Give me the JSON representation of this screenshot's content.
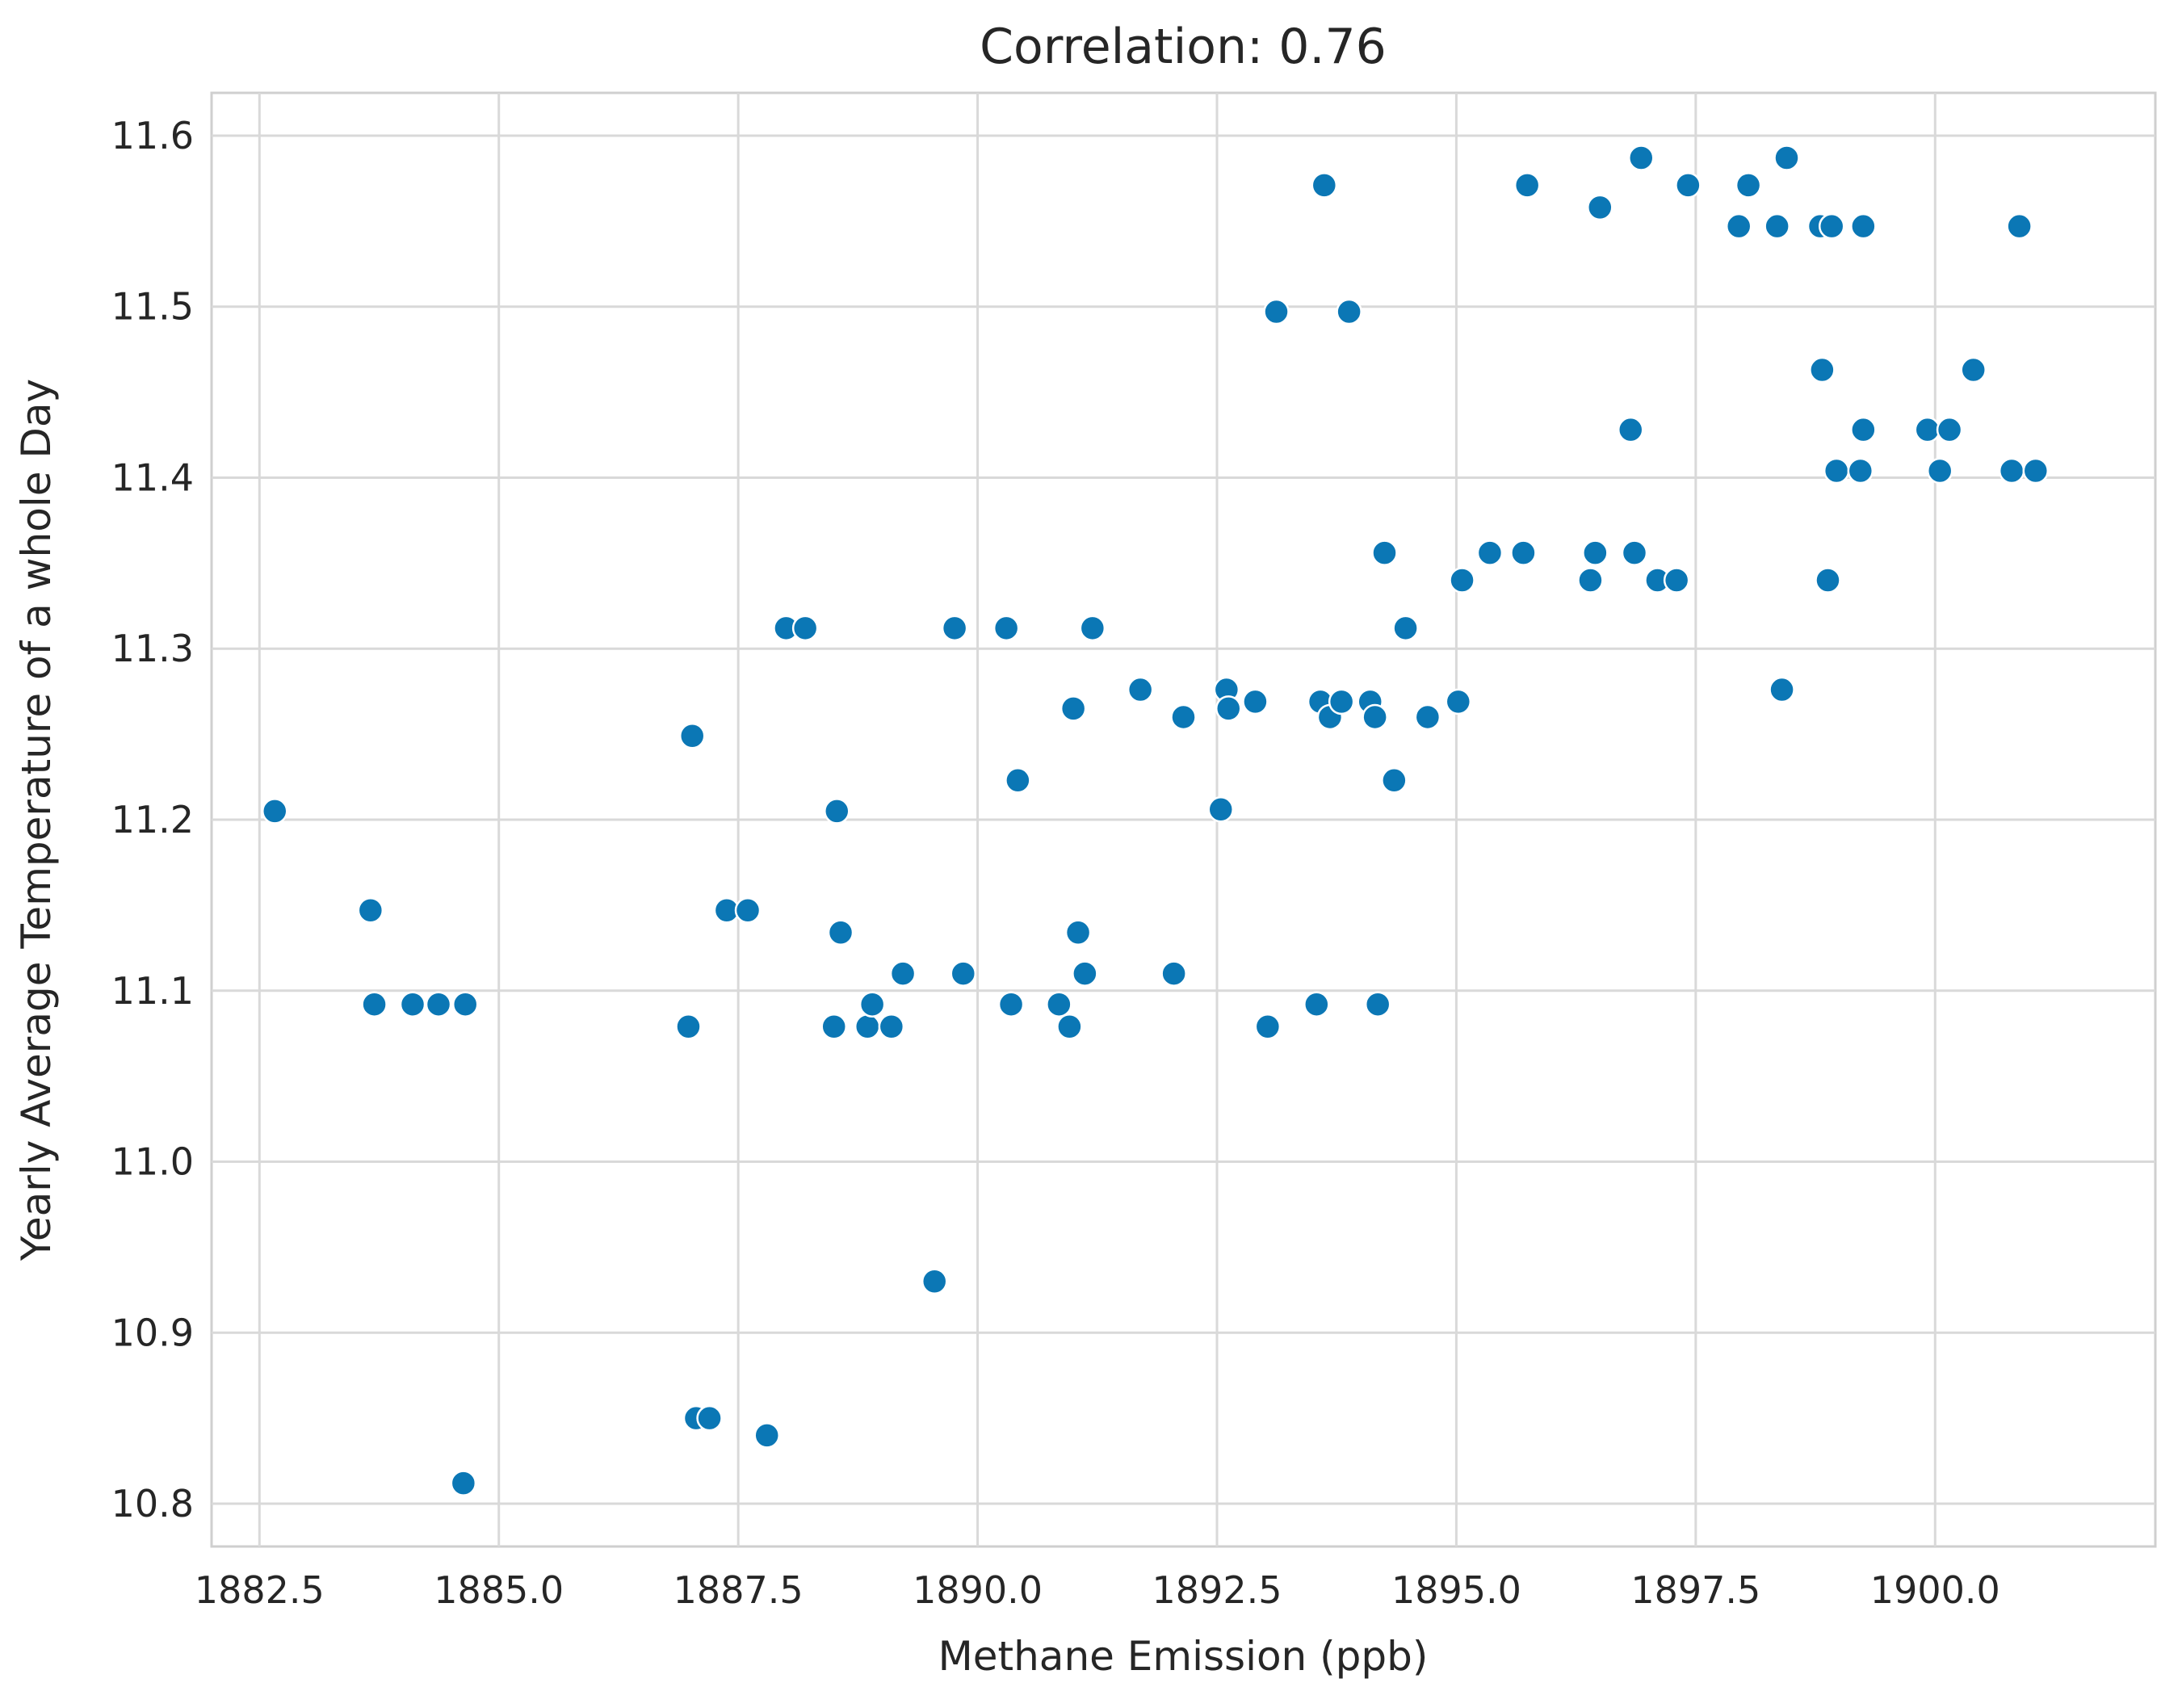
{
  "chart_data": {
    "type": "scatter",
    "title": "Correlation: 0.76",
    "xlabel": "Methane Emission (ppb)",
    "ylabel": "Yearly Average Temperature of a whole Day",
    "xlim": [
      1882.0,
      1902.3
    ],
    "ylim": [
      10.775,
      11.625
    ],
    "xticks": [
      1882.5,
      1885.0,
      1887.5,
      1890.0,
      1892.5,
      1895.0,
      1897.5,
      1900.0
    ],
    "xtick_labels": [
      "1882.5",
      "1885.0",
      "1887.5",
      "1890.0",
      "1892.5",
      "1895.0",
      "1897.5",
      "1900.0"
    ],
    "yticks": [
      10.8,
      10.9,
      11.0,
      11.1,
      11.2,
      11.3,
      11.4,
      11.5,
      11.6
    ],
    "ytick_labels": [
      "10.8",
      "10.9",
      "11.0",
      "11.1",
      "11.2",
      "11.3",
      "11.4",
      "11.5",
      "11.6"
    ],
    "grid": true,
    "point_color": "#0b77b5",
    "points": [
      [
        1882.66,
        11.205
      ],
      [
        1883.66,
        11.147
      ],
      [
        1883.7,
        11.092
      ],
      [
        1884.1,
        11.092
      ],
      [
        1884.37,
        11.092
      ],
      [
        1884.65,
        11.092
      ],
      [
        1884.63,
        10.812
      ],
      [
        1886.98,
        11.079
      ],
      [
        1887.02,
        11.249
      ],
      [
        1887.06,
        10.85
      ],
      [
        1887.2,
        10.85
      ],
      [
        1887.38,
        11.147
      ],
      [
        1887.6,
        11.147
      ],
      [
        1887.8,
        10.84
      ],
      [
        1888.0,
        11.312
      ],
      [
        1888.2,
        11.312
      ],
      [
        1888.5,
        11.079
      ],
      [
        1888.53,
        11.205
      ],
      [
        1888.57,
        11.134
      ],
      [
        1888.85,
        11.079
      ],
      [
        1888.9,
        11.092
      ],
      [
        1889.1,
        11.079
      ],
      [
        1889.22,
        11.11
      ],
      [
        1889.55,
        10.93
      ],
      [
        1889.76,
        11.312
      ],
      [
        1889.85,
        11.11
      ],
      [
        1890.3,
        11.312
      ],
      [
        1890.35,
        11.092
      ],
      [
        1890.42,
        11.223
      ],
      [
        1890.85,
        11.092
      ],
      [
        1890.96,
        11.079
      ],
      [
        1891.0,
        11.265
      ],
      [
        1891.05,
        11.134
      ],
      [
        1891.12,
        11.11
      ],
      [
        1891.2,
        11.312
      ],
      [
        1891.7,
        11.276
      ],
      [
        1892.05,
        11.11
      ],
      [
        1892.15,
        11.26
      ],
      [
        1892.54,
        11.206
      ],
      [
        1892.6,
        11.276
      ],
      [
        1892.62,
        11.265
      ],
      [
        1892.9,
        11.269
      ],
      [
        1893.03,
        11.079
      ],
      [
        1893.12,
        11.497
      ],
      [
        1893.54,
        11.092
      ],
      [
        1893.58,
        11.269
      ],
      [
        1893.62,
        11.571
      ],
      [
        1893.68,
        11.26
      ],
      [
        1893.8,
        11.269
      ],
      [
        1893.88,
        11.497
      ],
      [
        1894.1,
        11.269
      ],
      [
        1894.15,
        11.26
      ],
      [
        1894.18,
        11.092
      ],
      [
        1894.25,
        11.356
      ],
      [
        1894.35,
        11.223
      ],
      [
        1894.47,
        11.312
      ],
      [
        1894.7,
        11.26
      ],
      [
        1895.02,
        11.269
      ],
      [
        1895.06,
        11.34
      ],
      [
        1895.35,
        11.356
      ],
      [
        1895.7,
        11.356
      ],
      [
        1895.74,
        11.571
      ],
      [
        1896.4,
        11.34
      ],
      [
        1896.45,
        11.356
      ],
      [
        1896.5,
        11.558
      ],
      [
        1896.82,
        11.428
      ],
      [
        1896.86,
        11.356
      ],
      [
        1896.93,
        11.587
      ],
      [
        1897.1,
        11.34
      ],
      [
        1897.3,
        11.34
      ],
      [
        1897.42,
        11.571
      ],
      [
        1897.95,
        11.547
      ],
      [
        1898.05,
        11.571
      ],
      [
        1898.35,
        11.547
      ],
      [
        1898.4,
        11.276
      ],
      [
        1898.45,
        11.587
      ],
      [
        1898.8,
        11.547
      ],
      [
        1898.82,
        11.463
      ],
      [
        1898.88,
        11.34
      ],
      [
        1898.92,
        11.547
      ],
      [
        1898.97,
        11.404
      ],
      [
        1899.22,
        11.404
      ],
      [
        1899.25,
        11.547
      ],
      [
        1899.25,
        11.428
      ],
      [
        1899.92,
        11.428
      ],
      [
        1900.05,
        11.404
      ],
      [
        1900.15,
        11.428
      ],
      [
        1900.4,
        11.463
      ],
      [
        1900.8,
        11.404
      ],
      [
        1900.88,
        11.547
      ],
      [
        1901.05,
        11.404
      ]
    ]
  }
}
